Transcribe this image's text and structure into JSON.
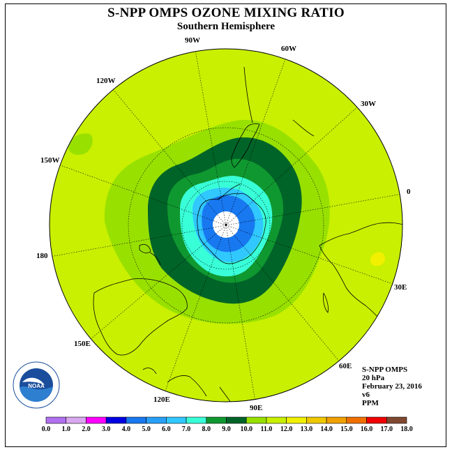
{
  "header": {
    "title": "S-NPP OMPS OZONE MIXING RATIO",
    "subtitle": "Southern Hemisphere"
  },
  "map": {
    "projection": "polar stereographic, south pole centered",
    "longitude_labels": [
      "90W",
      "60W",
      "30W",
      "0",
      "30E",
      "60E",
      "90E",
      "120E",
      "150E",
      "180",
      "150W",
      "120W"
    ],
    "contour_levels_ppm": [
      0.0,
      1.0,
      2.0,
      3.0,
      4.0,
      5.0,
      6.0,
      7.0,
      8.0,
      9.0,
      10.0,
      11.0,
      12.0,
      13.0,
      14.0,
      15.0,
      16.0,
      17.0,
      18.0
    ],
    "background_level_color": "#c8f000",
    "missing_polar_region_color": "#ffffff"
  },
  "info": {
    "instrument": "S-NPP OMPS",
    "pressure": "20 hPa",
    "date": "February 23, 2016",
    "version": "v6",
    "units": "PPM"
  },
  "colorbar": {
    "labels": [
      "0.0",
      "1.0",
      "2.0",
      "3.0",
      "4.0",
      "5.0",
      "6.0",
      "7.0",
      "8.0",
      "9.0",
      "10.0",
      "11.0",
      "12.0",
      "13.0",
      "14.0",
      "15.0",
      "16.0",
      "17.0",
      "18.0"
    ],
    "colors": [
      "#b070f0",
      "#d8a8f0",
      "#ff00ff",
      "#0000e0",
      "#1878f0",
      "#28a0f8",
      "#30c8ff",
      "#38ffd8",
      "#109830",
      "#006428",
      "#98e000",
      "#c8f000",
      "#f0f000",
      "#f0c800",
      "#f0a000",
      "#f07000",
      "#f00000",
      "#804830"
    ]
  },
  "logo": {
    "text": "NOAA",
    "ring_text": "NATIONAL OCEANIC AND ATMOSPHERIC ADMINISTRATION • U.S. DEPARTMENT OF COMMERCE"
  },
  "colors": {
    "frame": "#000000",
    "grid": "#000000",
    "coast": "#000000",
    "noaa_blue": "#1a4d9c",
    "noaa_sky": "#2e7fd0"
  }
}
